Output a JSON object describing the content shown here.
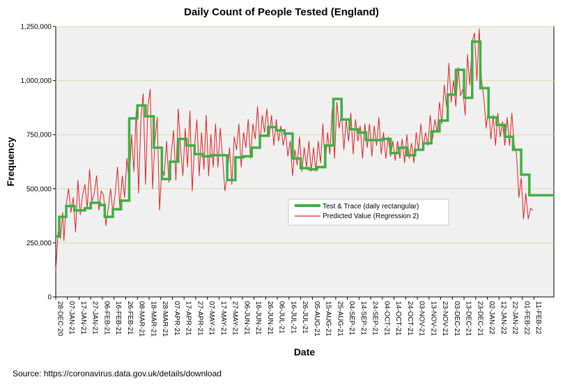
{
  "chart_data": {
    "type": "line",
    "title": "Daily Count of People Tested (England)",
    "xlabel": "Date",
    "ylabel": "Frequency",
    "ylim": [
      0,
      1250000
    ],
    "yticks": [
      0,
      250000,
      500000,
      750000,
      1000000,
      1250000
    ],
    "ytick_labels": [
      "0",
      "250,000",
      "500,000",
      "750,000",
      "1,000,000",
      "1,250,000"
    ],
    "gridlines": "horizontal",
    "x_start": "28-DEC-20",
    "x_days": 427,
    "x_tick_labels": [
      "28-DEC-20",
      "07-JAN-21",
      "17-JAN-21",
      "27-JAN-21",
      "06-FEB-21",
      "16-FEB-21",
      "26-FEB-21",
      "08-MAR-21",
      "18-MAR-21",
      "28-MAR-21",
      "07-APR-21",
      "17-APR-21",
      "27-APR-21",
      "07-MAY-21",
      "17-MAY-21",
      "27-MAY-21",
      "06-JUN-21",
      "16-JUN-21",
      "26-JUN-21",
      "06-JUL-21",
      "16-JUL-21",
      "26-JUL-21",
      "05-AUG-21",
      "15-AUG-21",
      "25-AUG-21",
      "04-SEP-21",
      "14-SEP-21",
      "24-SEP-21",
      "04-OCT-21",
      "14-OCT-21",
      "24-OCT-21",
      "03-NOV-21",
      "13-NOV-21",
      "23-NOV-21",
      "03-DEC-21",
      "13-DEC-21",
      "23-DEC-21",
      "02-JAN-22",
      "12-JAN-22",
      "22-JAN-22",
      "01-FEB-22",
      "11-FEB-22"
    ],
    "legend": {
      "placement": "center-right"
    },
    "series": [
      {
        "name": "Test & Trace (daily rectangular)",
        "color": "#3cb043",
        "style": "step",
        "points": [
          [
            0,
            280000
          ],
          [
            3,
            370000
          ],
          [
            9,
            420000
          ],
          [
            16,
            400000
          ],
          [
            25,
            410000
          ],
          [
            30,
            435000
          ],
          [
            38,
            425000
          ],
          [
            42,
            370000
          ],
          [
            49,
            405000
          ],
          [
            56,
            445000
          ],
          [
            63,
            825000
          ],
          [
            70,
            885000
          ],
          [
            77,
            835000
          ],
          [
            84,
            690000
          ],
          [
            91,
            545000
          ],
          [
            98,
            625000
          ],
          [
            105,
            730000
          ],
          [
            112,
            700000
          ],
          [
            119,
            660000
          ],
          [
            126,
            650000
          ],
          [
            133,
            655000
          ],
          [
            140,
            655000
          ],
          [
            147,
            540000
          ],
          [
            154,
            645000
          ],
          [
            161,
            650000
          ],
          [
            168,
            690000
          ],
          [
            175,
            745000
          ],
          [
            182,
            785000
          ],
          [
            189,
            770000
          ],
          [
            196,
            755000
          ],
          [
            203,
            640000
          ],
          [
            210,
            595000
          ],
          [
            217,
            590000
          ],
          [
            224,
            600000
          ],
          [
            231,
            700000
          ],
          [
            238,
            915000
          ],
          [
            245,
            820000
          ],
          [
            252,
            775000
          ],
          [
            259,
            760000
          ],
          [
            266,
            725000
          ],
          [
            273,
            725000
          ],
          [
            280,
            730000
          ],
          [
            287,
            665000
          ],
          [
            294,
            690000
          ],
          [
            301,
            655000
          ],
          [
            308,
            680000
          ],
          [
            315,
            710000
          ],
          [
            322,
            765000
          ],
          [
            329,
            815000
          ],
          [
            336,
            935000
          ],
          [
            343,
            1050000
          ],
          [
            350,
            920000
          ],
          [
            357,
            1180000
          ],
          [
            364,
            965000
          ],
          [
            371,
            830000
          ],
          [
            378,
            795000
          ],
          [
            385,
            740000
          ],
          [
            392,
            680000
          ],
          [
            399,
            565000
          ],
          [
            406,
            470000
          ],
          [
            413,
            470000
          ]
        ]
      },
      {
        "name": "Predicted Value (Regression 2)",
        "color": "#e02020",
        "style": "line",
        "points": [
          [
            0,
            120000
          ],
          [
            2,
            300000
          ],
          [
            4,
            270000
          ],
          [
            6,
            390000
          ],
          [
            7,
            260000
          ],
          [
            9,
            430000
          ],
          [
            11,
            500000
          ],
          [
            13,
            390000
          ],
          [
            15,
            460000
          ],
          [
            17,
            300000
          ],
          [
            19,
            540000
          ],
          [
            21,
            380000
          ],
          [
            23,
            470000
          ],
          [
            25,
            520000
          ],
          [
            27,
            410000
          ],
          [
            29,
            590000
          ],
          [
            31,
            440000
          ],
          [
            33,
            480000
          ],
          [
            35,
            560000
          ],
          [
            37,
            400000
          ],
          [
            39,
            490000
          ],
          [
            41,
            470000
          ],
          [
            43,
            330000
          ],
          [
            45,
            410000
          ],
          [
            47,
            500000
          ],
          [
            49,
            390000
          ],
          [
            51,
            480000
          ],
          [
            53,
            600000
          ],
          [
            55,
            410000
          ],
          [
            57,
            560000
          ],
          [
            59,
            460000
          ],
          [
            61,
            640000
          ],
          [
            63,
            520000
          ],
          [
            65,
            750000
          ],
          [
            67,
            580000
          ],
          [
            69,
            860000
          ],
          [
            71,
            480000
          ],
          [
            73,
            820000
          ],
          [
            75,
            940000
          ],
          [
            77,
            520000
          ],
          [
            79,
            880000
          ],
          [
            81,
            960000
          ],
          [
            83,
            500000
          ],
          [
            85,
            720000
          ],
          [
            87,
            830000
          ],
          [
            89,
            400000
          ],
          [
            91,
            600000
          ],
          [
            93,
            560000
          ],
          [
            95,
            720000
          ],
          [
            97,
            530000
          ],
          [
            99,
            660000
          ],
          [
            101,
            770000
          ],
          [
            103,
            540000
          ],
          [
            105,
            870000
          ],
          [
            107,
            690000
          ],
          [
            109,
            560000
          ],
          [
            111,
            780000
          ],
          [
            113,
            600000
          ],
          [
            115,
            860000
          ],
          [
            117,
            490000
          ],
          [
            119,
            700000
          ],
          [
            121,
            820000
          ],
          [
            123,
            560000
          ],
          [
            125,
            760000
          ],
          [
            127,
            590000
          ],
          [
            129,
            840000
          ],
          [
            131,
            560000
          ],
          [
            133,
            750000
          ],
          [
            135,
            600000
          ],
          [
            137,
            800000
          ],
          [
            139,
            600000
          ],
          [
            141,
            780000
          ],
          [
            143,
            650000
          ],
          [
            145,
            490000
          ],
          [
            147,
            560000
          ],
          [
            149,
            690000
          ],
          [
            151,
            520000
          ],
          [
            153,
            740000
          ],
          [
            155,
            680000
          ],
          [
            157,
            800000
          ],
          [
            159,
            600000
          ],
          [
            161,
            760000
          ],
          [
            163,
            690000
          ],
          [
            165,
            820000
          ],
          [
            167,
            640000
          ],
          [
            169,
            800000
          ],
          [
            171,
            730000
          ],
          [
            173,
            880000
          ],
          [
            175,
            700000
          ],
          [
            177,
            840000
          ],
          [
            179,
            760000
          ],
          [
            181,
            870000
          ],
          [
            183,
            740000
          ],
          [
            185,
            840000
          ],
          [
            187,
            700000
          ],
          [
            189,
            820000
          ],
          [
            191,
            720000
          ],
          [
            193,
            790000
          ],
          [
            195,
            700000
          ],
          [
            197,
            760000
          ],
          [
            199,
            650000
          ],
          [
            201,
            720000
          ],
          [
            203,
            560000
          ],
          [
            205,
            680000
          ],
          [
            207,
            610000
          ],
          [
            209,
            740000
          ],
          [
            211,
            580000
          ],
          [
            213,
            690000
          ],
          [
            215,
            600000
          ],
          [
            217,
            720000
          ],
          [
            219,
            580000
          ],
          [
            221,
            690000
          ],
          [
            223,
            580000
          ],
          [
            225,
            720000
          ],
          [
            227,
            620000
          ],
          [
            229,
            800000
          ],
          [
            231,
            600000
          ],
          [
            233,
            760000
          ],
          [
            235,
            660000
          ],
          [
            237,
            870000
          ],
          [
            239,
            640000
          ],
          [
            241,
            900000
          ],
          [
            243,
            780000
          ],
          [
            245,
            850000
          ],
          [
            247,
            680000
          ],
          [
            249,
            820000
          ],
          [
            251,
            720000
          ],
          [
            253,
            850000
          ],
          [
            255,
            660000
          ],
          [
            257,
            820000
          ],
          [
            259,
            720000
          ],
          [
            261,
            790000
          ],
          [
            263,
            640000
          ],
          [
            265,
            800000
          ],
          [
            267,
            690000
          ],
          [
            269,
            800000
          ],
          [
            271,
            650000
          ],
          [
            273,
            790000
          ],
          [
            275,
            700000
          ],
          [
            277,
            830000
          ],
          [
            279,
            660000
          ],
          [
            281,
            760000
          ],
          [
            283,
            640000
          ],
          [
            285,
            740000
          ],
          [
            287,
            650000
          ],
          [
            289,
            720000
          ],
          [
            291,
            630000
          ],
          [
            293,
            720000
          ],
          [
            295,
            640000
          ],
          [
            297,
            730000
          ],
          [
            299,
            620000
          ],
          [
            301,
            750000
          ],
          [
            303,
            640000
          ],
          [
            305,
            710000
          ],
          [
            307,
            620000
          ],
          [
            309,
            760000
          ],
          [
            311,
            680000
          ],
          [
            313,
            800000
          ],
          [
            315,
            690000
          ],
          [
            317,
            760000
          ],
          [
            319,
            700000
          ],
          [
            321,
            840000
          ],
          [
            323,
            730000
          ],
          [
            325,
            820000
          ],
          [
            327,
            760000
          ],
          [
            329,
            900000
          ],
          [
            331,
            800000
          ],
          [
            333,
            980000
          ],
          [
            335,
            880000
          ],
          [
            337,
            1080000
          ],
          [
            339,
            900000
          ],
          [
            341,
            1000000
          ],
          [
            343,
            880000
          ],
          [
            345,
            1060000
          ],
          [
            347,
            930000
          ],
          [
            349,
            960000
          ],
          [
            351,
            840000
          ],
          [
            353,
            1120000
          ],
          [
            355,
            980000
          ],
          [
            357,
            1180000
          ],
          [
            359,
            1220000
          ],
          [
            361,
            1000000
          ],
          [
            363,
            1240000
          ],
          [
            365,
            1000000
          ],
          [
            367,
            920000
          ],
          [
            369,
            780000
          ],
          [
            371,
            880000
          ],
          [
            373,
            730000
          ],
          [
            375,
            840000
          ],
          [
            377,
            700000
          ],
          [
            379,
            850000
          ],
          [
            381,
            740000
          ],
          [
            383,
            810000
          ],
          [
            385,
            700000
          ],
          [
            387,
            830000
          ],
          [
            389,
            700000
          ],
          [
            391,
            850000
          ],
          [
            393,
            700000
          ],
          [
            395,
            660000
          ],
          [
            397,
            460000
          ],
          [
            399,
            550000
          ],
          [
            401,
            360000
          ],
          [
            403,
            480000
          ],
          [
            405,
            360000
          ],
          [
            407,
            410000
          ],
          [
            409,
            400000
          ]
        ]
      }
    ],
    "source": "Source: https://coronavirus.data.gov.uk/details/download"
  }
}
